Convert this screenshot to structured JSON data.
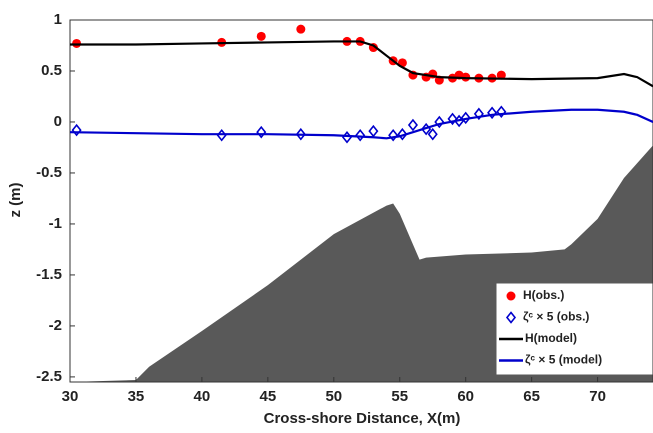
{
  "chart_data": {
    "type": "line",
    "xlabel": "Cross-shore Distance, X(m)",
    "ylabel": "z (m)",
    "xlim": [
      30,
      74.2
    ],
    "ylim": [
      -2.55,
      1
    ],
    "xticks": [
      30,
      35,
      40,
      45,
      50,
      55,
      60,
      65,
      70
    ],
    "yticks": [
      -2.5,
      -2,
      -1.5,
      -1,
      -0.5,
      0,
      0.5,
      1
    ],
    "legend": "lower right",
    "series": [
      {
        "type": "area",
        "color": "#595959",
        "x": [
          30,
          35,
          36,
          40,
          45,
          50,
          54,
          54.5,
          55,
          56,
          56.5,
          57,
          60,
          65,
          67.5,
          68,
          70,
          72,
          74.2
        ],
        "values": [
          -2.55,
          -2.53,
          -2.4,
          -2.05,
          -1.6,
          -1.1,
          -0.82,
          -0.8,
          -0.9,
          -1.2,
          -1.35,
          -1.33,
          -1.3,
          -1.28,
          -1.25,
          -1.2,
          -0.95,
          -0.55,
          -0.23
        ]
      },
      {
        "type": "scatter",
        "marker": "circle",
        "name": "H(obs.)",
        "color": "#ff0000",
        "x": [
          30.5,
          41.5,
          44.5,
          47.5,
          51,
          52,
          53,
          54.5,
          55.2,
          56,
          57,
          57.5,
          58,
          59,
          59.5,
          60,
          61,
          62,
          62.7
        ],
        "values": [
          0.77,
          0.78,
          0.84,
          0.91,
          0.79,
          0.79,
          0.73,
          0.6,
          0.58,
          0.46,
          0.44,
          0.47,
          0.41,
          0.43,
          0.46,
          0.44,
          0.43,
          0.43,
          0.46
        ]
      },
      {
        "type": "scatter",
        "marker": "diamond",
        "name": "ζᶜ × 5 (obs.)",
        "color": "#0000cc",
        "x": [
          30.5,
          41.5,
          44.5,
          47.5,
          51,
          52,
          53,
          54.5,
          55.2,
          56,
          57,
          57.5,
          58,
          59,
          59.5,
          60,
          61,
          62,
          62.7
        ],
        "values": [
          -0.08,
          -0.13,
          -0.1,
          -0.12,
          -0.15,
          -0.13,
          -0.09,
          -0.13,
          -0.12,
          -0.03,
          -0.07,
          -0.12,
          0.0,
          0.03,
          0.01,
          0.04,
          0.08,
          0.09,
          0.1
        ]
      },
      {
        "type": "line",
        "name": "H(model)",
        "color": "#000000",
        "x": [
          30,
          35,
          40,
          45,
          50,
          52,
          53,
          54,
          55,
          56,
          58,
          60,
          65,
          70,
          72,
          73,
          74.2
        ],
        "values": [
          0.76,
          0.76,
          0.77,
          0.78,
          0.79,
          0.79,
          0.75,
          0.65,
          0.55,
          0.48,
          0.44,
          0.43,
          0.42,
          0.43,
          0.47,
          0.44,
          0.35
        ]
      },
      {
        "type": "line",
        "name": "ζᶜ × 5 (model)",
        "color": "#0000cc",
        "x": [
          30,
          35,
          40,
          45,
          50,
          53,
          54,
          55,
          56,
          57,
          58,
          60,
          62,
          65,
          68,
          70,
          72,
          73,
          74.2
        ],
        "values": [
          -0.1,
          -0.11,
          -0.12,
          -0.12,
          -0.13,
          -0.15,
          -0.16,
          -0.14,
          -0.1,
          -0.06,
          -0.02,
          0.03,
          0.07,
          0.1,
          0.12,
          0.12,
          0.1,
          0.07,
          0.0
        ]
      }
    ]
  }
}
